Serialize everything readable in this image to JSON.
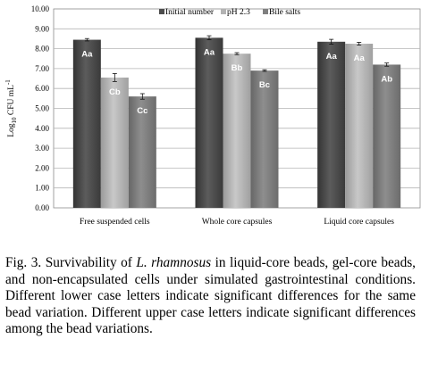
{
  "chart_data": {
    "type": "bar",
    "categories": [
      "Free suspended cells",
      "Whole core capsules",
      "Liquid core capsules"
    ],
    "series": [
      {
        "name": "Initial number",
        "color": "#4d4d4d",
        "values": [
          8.45,
          8.55,
          8.35
        ],
        "errors": [
          0.06,
          0.1,
          0.12
        ],
        "labels": [
          "Aa",
          "Aa",
          "Aa"
        ]
      },
      {
        "name": "pH 2.3",
        "color": "#b3b3b3",
        "values": [
          6.55,
          7.75,
          8.25
        ],
        "errors": [
          0.2,
          0.05,
          0.07
        ],
        "labels": [
          "Cb",
          "Bb",
          "Aa"
        ]
      },
      {
        "name": "Bile salts",
        "color": "#7f7f7f",
        "values": [
          5.6,
          6.9,
          7.2
        ],
        "errors": [
          0.14,
          0.04,
          0.08
        ],
        "labels": [
          "Cc",
          "Bc",
          "Ab"
        ]
      }
    ],
    "ylabel_main": "Log",
    "ylabel_sub": "10",
    "ylabel_unit": " CFU mL",
    "ylabel_sup": "-1",
    "ylim": [
      0,
      10
    ],
    "yticks": [
      "0.00",
      "1.00",
      "2.00",
      "3.00",
      "4.00",
      "5.00",
      "6.00",
      "7.00",
      "8.00",
      "9.00",
      "10.00"
    ],
    "legend_position": "top-right",
    "grid": true
  },
  "caption": {
    "prefix": "Fig. 3. Survivability of ",
    "species": "L. rhamnosus",
    "text": " in liquid-core beads, gel-core beads, and non-encapsulated cells under simulated gastrointestinal conditions. Different lower case letters indicate significant differences for the same bead variation.   Different upper case letters indicate significant differences among the bead variations."
  }
}
